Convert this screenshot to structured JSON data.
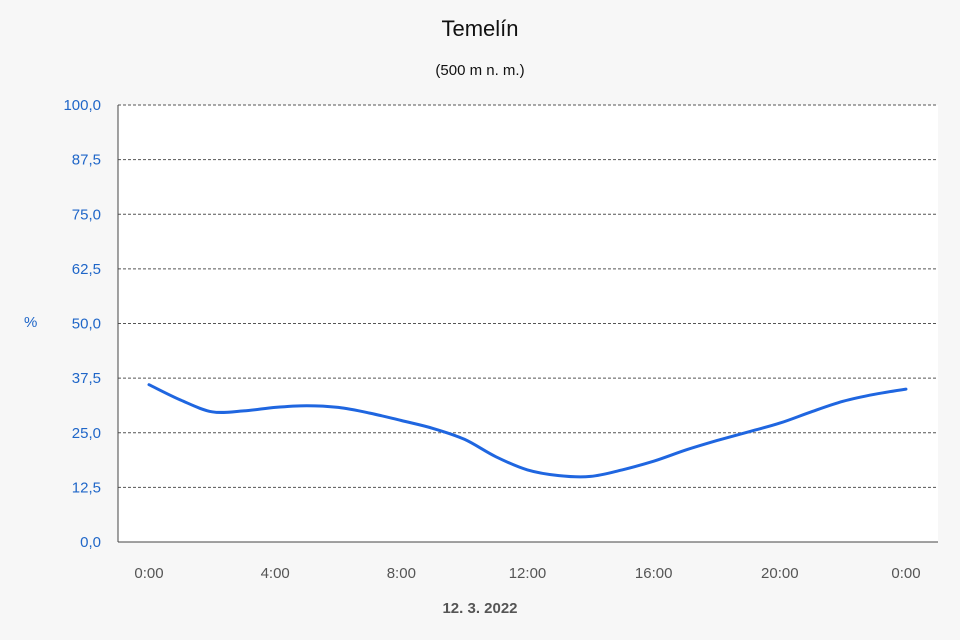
{
  "chart_data": {
    "type": "line",
    "title": "Temelín",
    "subtitle": "(500 m n. m.)",
    "ylabel": "%",
    "xlabel": "12. 3. 2022",
    "ylim": [
      0,
      100
    ],
    "yticks": [
      "0,0",
      "12,5",
      "25,0",
      "37,5",
      "50,0",
      "62,5",
      "75,0",
      "87,5",
      "100,0"
    ],
    "x_tick_labels": [
      "0:00",
      "4:00",
      "8:00",
      "12:00",
      "16:00",
      "20:00",
      "0:00"
    ],
    "x_range_hours": [
      0,
      24
    ],
    "grid": true,
    "series": [
      {
        "color": "#1f66e0",
        "points": [
          {
            "x": 0,
            "y": 36.0
          },
          {
            "x": 1,
            "y": 32.5
          },
          {
            "x": 2,
            "y": 29.8
          },
          {
            "x": 3,
            "y": 30.0
          },
          {
            "x": 4,
            "y": 30.8
          },
          {
            "x": 5,
            "y": 31.2
          },
          {
            "x": 6,
            "y": 30.8
          },
          {
            "x": 7,
            "y": 29.5
          },
          {
            "x": 8,
            "y": 27.8
          },
          {
            "x": 9,
            "y": 26.0
          },
          {
            "x": 10,
            "y": 23.5
          },
          {
            "x": 11,
            "y": 19.5
          },
          {
            "x": 12,
            "y": 16.5
          },
          {
            "x": 13,
            "y": 15.2
          },
          {
            "x": 14,
            "y": 15.0
          },
          {
            "x": 15,
            "y": 16.5
          },
          {
            "x": 16,
            "y": 18.5
          },
          {
            "x": 17,
            "y": 21.0
          },
          {
            "x": 18,
            "y": 23.2
          },
          {
            "x": 19,
            "y": 25.2
          },
          {
            "x": 20,
            "y": 27.2
          },
          {
            "x": 21,
            "y": 29.8
          },
          {
            "x": 22,
            "y": 32.2
          },
          {
            "x": 23,
            "y": 33.8
          },
          {
            "x": 24,
            "y": 35.0
          }
        ]
      }
    ]
  }
}
